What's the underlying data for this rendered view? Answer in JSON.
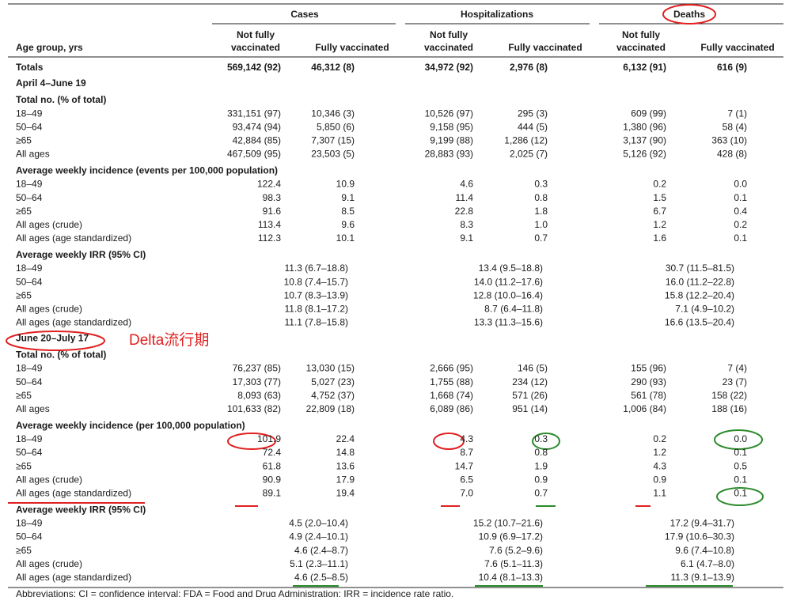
{
  "header": {
    "groups": [
      "Cases",
      "Hospitalizations",
      "Deaths"
    ],
    "age_label": "Age group, yrs",
    "subcols": [
      [
        "Not fully",
        "vaccinated"
      ],
      [
        "Fully vaccinated"
      ],
      [
        "Not fully",
        "vaccinated"
      ],
      [
        "Fully vaccinated"
      ],
      [
        "Not fully",
        "vaccinated"
      ],
      [
        "Fully vaccinated"
      ]
    ]
  },
  "totals": [
    "Totals",
    "569,142 (92)",
    "46,312 (8)",
    "34,972 (92)",
    "2,976 (8)",
    "6,132 (91)",
    "616 (9)"
  ],
  "periods": [
    {
      "title": "April 4–June 19",
      "blocks": [
        {
          "heading": "Total no. (% of total)",
          "rows": [
            [
              "18–49",
              "331,151 (97)",
              "10,346 (3)",
              "10,526 (97)",
              "295 (3)",
              "609 (99)",
              "7 (1)"
            ],
            [
              "50–64",
              "93,474 (94)",
              "5,850 (6)",
              "9,158 (95)",
              "444 (5)",
              "1,380 (96)",
              "58 (4)"
            ],
            [
              "≥65",
              "42,884 (85)",
              "7,307 (15)",
              "9,199 (88)",
              "1,286 (12)",
              "3,137 (90)",
              "363 (10)"
            ],
            [
              "All ages",
              "467,509 (95)",
              "23,503 (5)",
              "28,883 (93)",
              "2,025 (7)",
              "5,126 (92)",
              "428 (8)"
            ]
          ]
        },
        {
          "heading": "Average weekly incidence (events per 100,000 population)",
          "rows": [
            [
              "18–49",
              "122.4",
              "10.9",
              "4.6",
              "0.3",
              "0.2",
              "0.0"
            ],
            [
              "50–64",
              "98.3",
              "9.1",
              "11.4",
              "0.8",
              "1.5",
              "0.1"
            ],
            [
              "≥65",
              "91.6",
              "8.5",
              "22.8",
              "1.8",
              "6.7",
              "0.4"
            ],
            [
              "All ages (crude)",
              "113.4",
              "9.6",
              "8.3",
              "1.0",
              "1.2",
              "0.2"
            ],
            [
              "All ages (age standardized)",
              "112.3",
              "10.1",
              "9.1",
              "0.7",
              "1.6",
              "0.1"
            ]
          ]
        },
        {
          "heading": "Average weekly IRR (95% CI)",
          "rows": [
            [
              "18–49",
              "11.3 (6.7–18.8)",
              "13.4 (9.5–18.8)",
              "30.7 (11.5–81.5)"
            ],
            [
              "50–64",
              "10.8 (7.4–15.7)",
              "14.0 (11.2–17.6)",
              "16.0 (11.2–22.8)"
            ],
            [
              "≥65",
              "10.7 (8.3–13.9)",
              "12.8 (10.0–16.4)",
              "15.8 (12.2–20.4)"
            ],
            [
              "All ages (crude)",
              "11.8 (8.1–17.2)",
              "8.7 (6.4–11.8)",
              "7.1 (4.9–10.2)"
            ],
            [
              "All ages (age standardized)",
              "11.1 (7.8–15.8)",
              "13.3 (11.3–15.6)",
              "16.6 (13.5–20.4)"
            ]
          ]
        }
      ]
    },
    {
      "title": "June 20–July 17",
      "blocks": [
        {
          "heading": "Total no. (% of total)",
          "rows": [
            [
              "18–49",
              "76,237 (85)",
              "13,030 (15)",
              "2,666 (95)",
              "146 (5)",
              "155 (96)",
              "7 (4)"
            ],
            [
              "50–64",
              "17,303 (77)",
              "5,027 (23)",
              "1,755 (88)",
              "234 (12)",
              "290 (93)",
              "23 (7)"
            ],
            [
              "≥65",
              "8,093 (63)",
              "4,752 (37)",
              "1,668 (74)",
              "571 (26)",
              "561 (78)",
              "158 (22)"
            ],
            [
              "All ages",
              "101,633 (82)",
              "22,809 (18)",
              "6,089 (86)",
              "951 (14)",
              "1,006 (84)",
              "188 (16)"
            ]
          ]
        },
        {
          "heading": "Average weekly incidence (per 100,000 population)",
          "rows": [
            [
              "18–49",
              "101.9",
              "22.4",
              "4.3",
              "0.3",
              "0.2",
              "0.0"
            ],
            [
              "50–64",
              "72.4",
              "14.8",
              "8.7",
              "0.8",
              "1.2",
              "0.1"
            ],
            [
              "≥65",
              "61.8",
              "13.6",
              "14.7",
              "1.9",
              "4.3",
              "0.5"
            ],
            [
              "All ages (crude)",
              "90.9",
              "17.9",
              "6.5",
              "0.9",
              "0.9",
              "0.1"
            ],
            [
              "All ages (age standardized)",
              "89.1",
              "19.4",
              "7.0",
              "0.7",
              "1.1",
              "0.1"
            ]
          ]
        },
        {
          "heading": "Average weekly IRR (95% CI)",
          "rows": [
            [
              "18–49",
              "4.5 (2.0–10.4)",
              "15.2 (10.7–21.6)",
              "17.2 (9.4–31.7)"
            ],
            [
              "50–64",
              "4.9 (2.4–10.1)",
              "10.9 (6.9–17.2)",
              "17.9 (10.6–30.3)"
            ],
            [
              "≥65",
              "4.6 (2.4–8.7)",
              "7.6 (5.2–9.6)",
              "9.6 (7.4–10.8)"
            ],
            [
              "All ages (crude)",
              "5.1 (2.3–11.1)",
              "7.6 (5.1–11.3)",
              "6.1 (4.7–8.0)"
            ],
            [
              "All ages (age standardized)",
              "4.6 (2.5–8.5)",
              "10.4 (8.1–13.3)",
              "11.3 (9.1–13.9)"
            ]
          ]
        }
      ]
    }
  ],
  "annotation": "Delta流行期",
  "footnote": "Abbreviations: CI = confidence interval; FDA = Food and Drug Administration; IRR = incidence rate ratio."
}
